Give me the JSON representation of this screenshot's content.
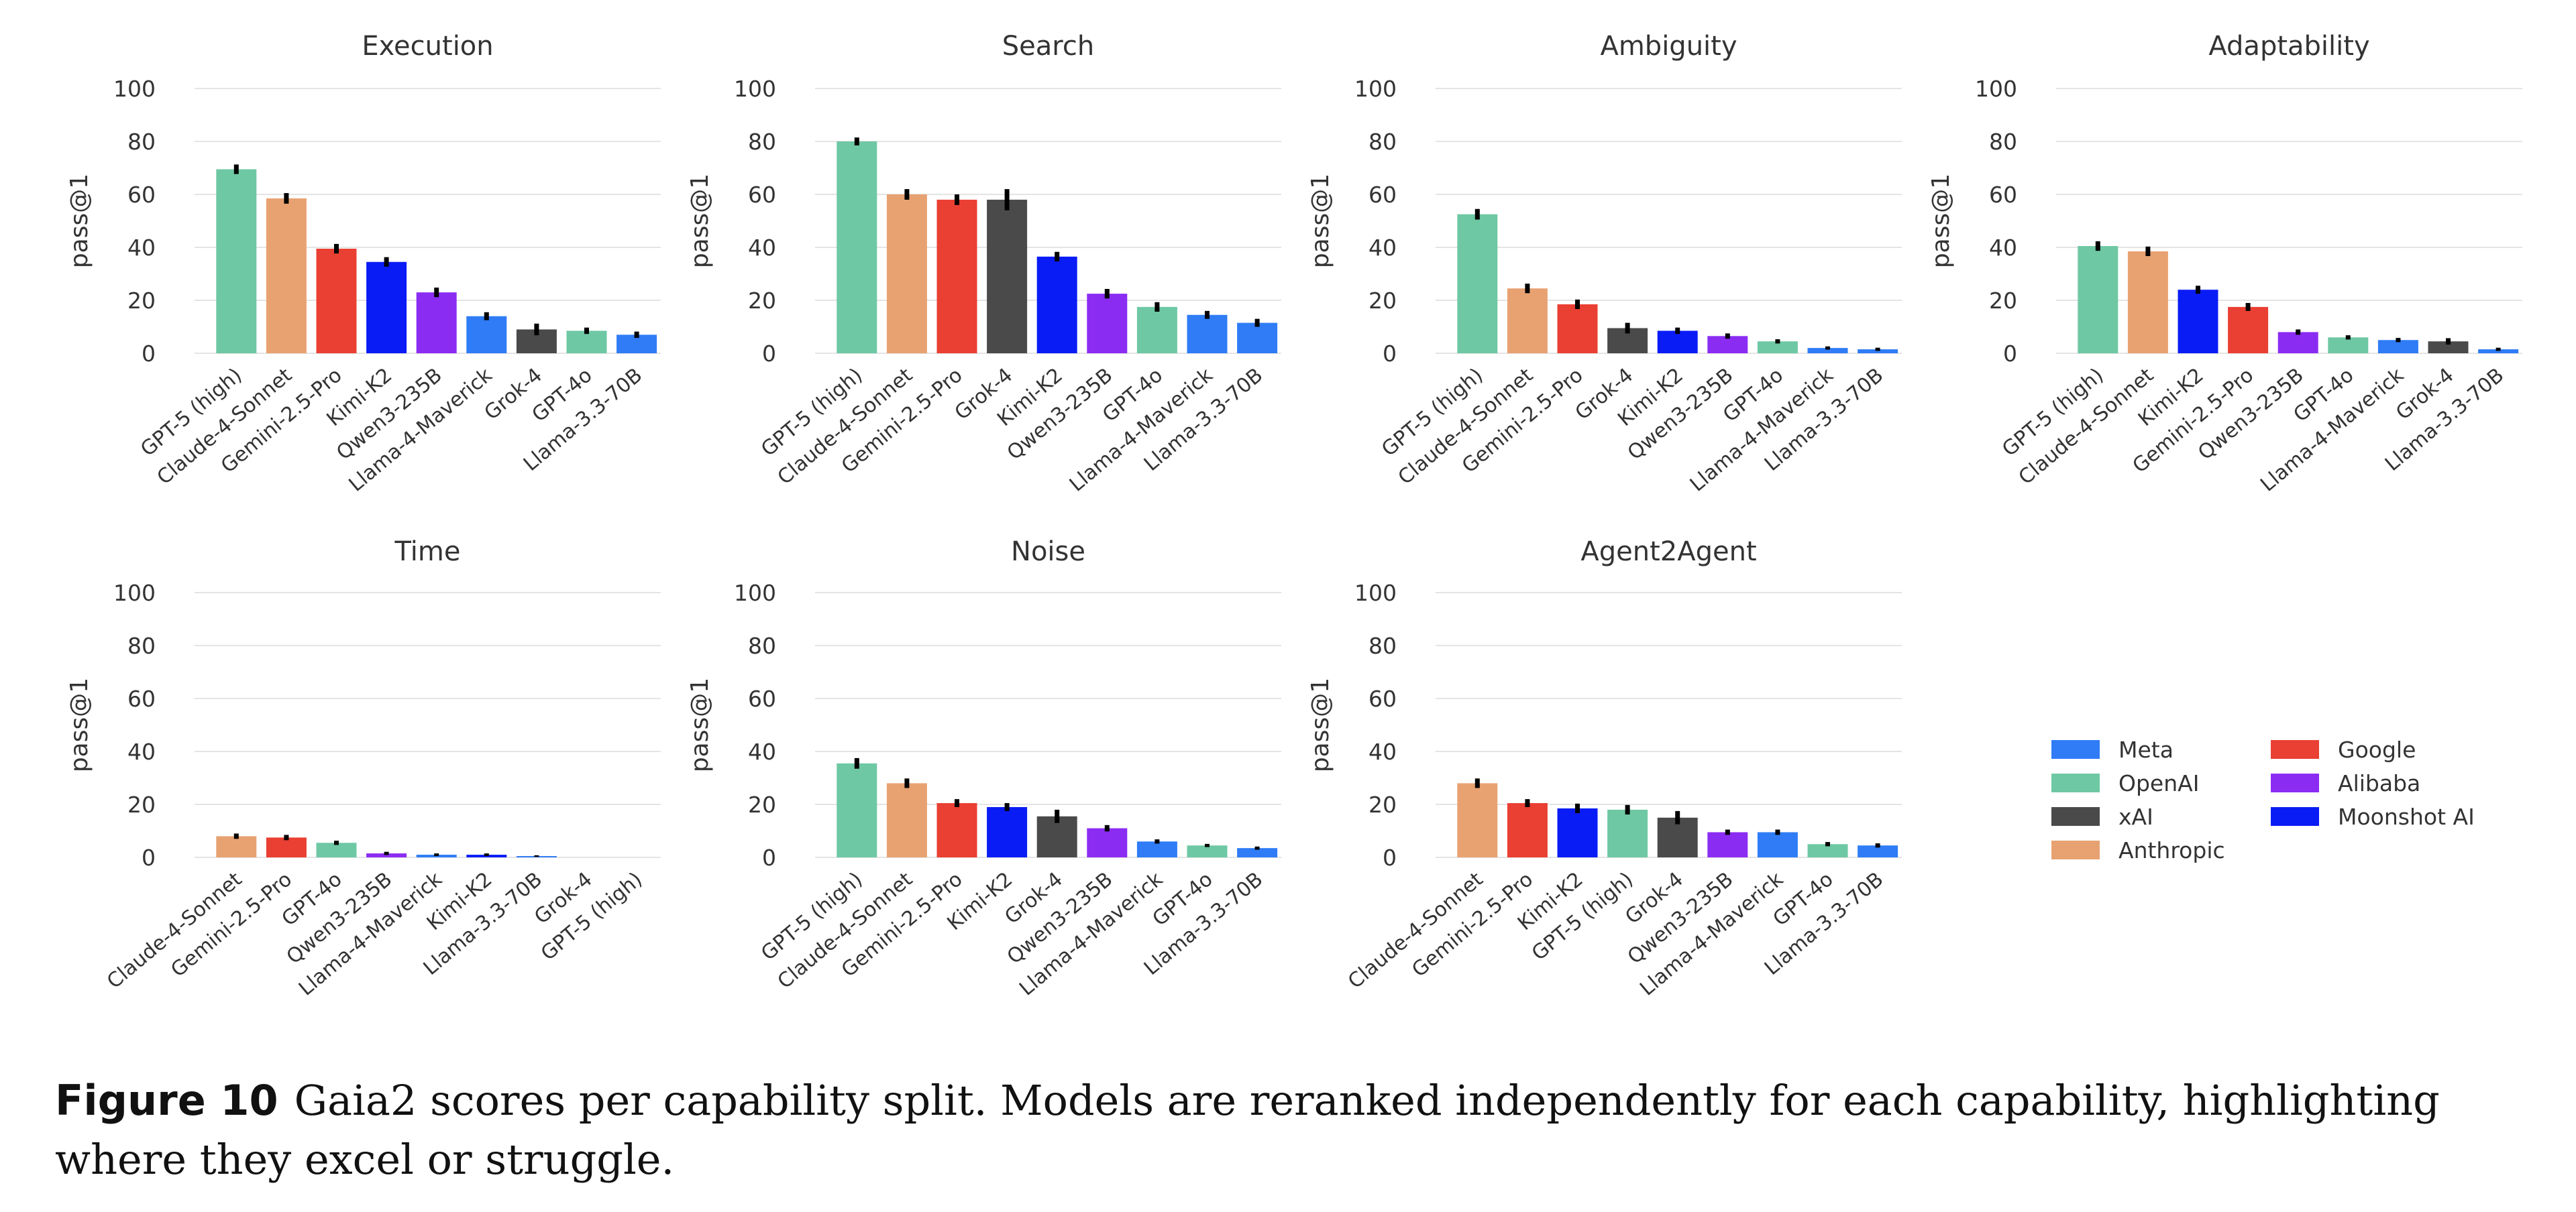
{
  "colors": {
    "Meta": "#2f7cf6",
    "OpenAI": "#6ec8a4",
    "xAI": "#4a4a4a",
    "Anthropic": "#e8a272",
    "Google": "#ea3f33",
    "Alibaba": "#8b2cf3",
    "Moonshot AI": "#0a1cf5"
  },
  "model_provider": {
    "GPT-5 (high)": "OpenAI",
    "GPT-4o": "OpenAI",
    "Claude-4-Sonnet": "Anthropic",
    "Gemini-2.5-Pro": "Google",
    "Kimi-K2": "Moonshot AI",
    "Qwen3-235B": "Alibaba",
    "Llama-4-Maverick": "Meta",
    "Llama-3.3-70B": "Meta",
    "Grok-4": "xAI"
  },
  "legend": {
    "items": [
      "Meta",
      "OpenAI",
      "xAI",
      "Anthropic",
      "Google",
      "Alibaba",
      "Moonshot AI"
    ]
  },
  "chart_data": [
    {
      "type": "bar",
      "title": "Execution",
      "ylabel": "pass@1",
      "ylim": [
        0,
        100
      ],
      "yticks": [
        "0",
        "20",
        "40",
        "60",
        "80",
        "100"
      ],
      "grid": true,
      "categories": [
        "GPT-5 (high)",
        "Claude-4-Sonnet",
        "Gemini-2.5-Pro",
        "Kimi-K2",
        "Qwen3-235B",
        "Llama-4-Maverick",
        "Grok-4",
        "GPT-4o",
        "Llama-3.3-70B"
      ],
      "values": [
        69.5,
        58.5,
        39.5,
        34.5,
        23,
        14,
        9,
        8.5,
        7
      ],
      "errors": [
        1.8,
        2,
        1.8,
        1.8,
        1.8,
        1.5,
        2.2,
        1.2,
        1.2
      ]
    },
    {
      "type": "bar",
      "title": "Search",
      "ylabel": "pass@1",
      "ylim": [
        0,
        100
      ],
      "yticks": [
        "0",
        "20",
        "40",
        "60",
        "80",
        "100"
      ],
      "grid": true,
      "categories": [
        "GPT-5 (high)",
        "Claude-4-Sonnet",
        "Gemini-2.5-Pro",
        "Grok-4",
        "Kimi-K2",
        "Qwen3-235B",
        "GPT-4o",
        "Llama-4-Maverick",
        "Llama-3.3-70B"
      ],
      "values": [
        80,
        60,
        58,
        58,
        36.5,
        22.5,
        17.5,
        14.5,
        11.5
      ],
      "errors": [
        1.5,
        2,
        2,
        4,
        1.8,
        1.8,
        1.8,
        1.5,
        1.5
      ]
    },
    {
      "type": "bar",
      "title": "Ambiguity",
      "ylabel": "pass@1",
      "ylim": [
        0,
        100
      ],
      "yticks": [
        "0",
        "20",
        "40",
        "60",
        "80",
        "100"
      ],
      "grid": true,
      "categories": [
        "GPT-5 (high)",
        "Claude-4-Sonnet",
        "Gemini-2.5-Pro",
        "Grok-4",
        "Kimi-K2",
        "Qwen3-235B",
        "GPT-4o",
        "Llama-4-Maverick",
        "Llama-3.3-70B"
      ],
      "values": [
        52.5,
        24.5,
        18.5,
        9.5,
        8.5,
        6.5,
        4.5,
        2,
        1.5
      ],
      "errors": [
        2,
        1.8,
        1.8,
        2,
        1.2,
        1,
        0.8,
        0.6,
        0.6
      ]
    },
    {
      "type": "bar",
      "title": "Adaptability",
      "ylabel": "pass@1",
      "ylim": [
        0,
        100
      ],
      "yticks": [
        "0",
        "20",
        "40",
        "60",
        "80",
        "100"
      ],
      "grid": true,
      "categories": [
        "GPT-5 (high)",
        "Claude-4-Sonnet",
        "Kimi-K2",
        "Gemini-2.5-Pro",
        "Qwen3-235B",
        "GPT-4o",
        "Llama-4-Maverick",
        "Grok-4",
        "Llama-3.3-70B"
      ],
      "values": [
        40.5,
        38.5,
        24,
        17.5,
        8,
        6,
        5,
        4.5,
        1.5
      ],
      "errors": [
        1.8,
        1.8,
        1.5,
        1.5,
        1,
        0.8,
        0.8,
        1.2,
        0.6
      ]
    },
    {
      "type": "bar",
      "title": "Time",
      "ylabel": "pass@1",
      "ylim": [
        0,
        100
      ],
      "yticks": [
        "0",
        "20",
        "40",
        "60",
        "80",
        "100"
      ],
      "grid": true,
      "categories": [
        "Claude-4-Sonnet",
        "Gemini-2.5-Pro",
        "GPT-4o",
        "Qwen3-235B",
        "Llama-4-Maverick",
        "Kimi-K2",
        "Llama-3.3-70B",
        "Grok-4",
        "GPT-5 (high)"
      ],
      "values": [
        8,
        7.5,
        5.5,
        1.5,
        1,
        1,
        0.5,
        0,
        0
      ],
      "errors": [
        1,
        1,
        0.8,
        0.6,
        0.5,
        0.5,
        0.3,
        0,
        0
      ]
    },
    {
      "type": "bar",
      "title": "Noise",
      "ylabel": "pass@1",
      "ylim": [
        0,
        100
      ],
      "yticks": [
        "0",
        "20",
        "40",
        "60",
        "80",
        "100"
      ],
      "grid": true,
      "categories": [
        "GPT-5 (high)",
        "Claude-4-Sonnet",
        "Gemini-2.5-Pro",
        "Kimi-K2",
        "Grok-4",
        "Qwen3-235B",
        "Llama-4-Maverick",
        "GPT-4o",
        "Llama-3.3-70B"
      ],
      "values": [
        35.5,
        28,
        20.5,
        19,
        15.5,
        11,
        6,
        4.5,
        3.5
      ],
      "errors": [
        2,
        1.8,
        1.5,
        1.5,
        2.5,
        1.2,
        0.8,
        0.6,
        0.6
      ]
    },
    {
      "type": "bar",
      "title": "Agent2Agent",
      "ylabel": "pass@1",
      "ylim": [
        0,
        100
      ],
      "yticks": [
        "0",
        "20",
        "40",
        "60",
        "80",
        "100"
      ],
      "grid": true,
      "categories": [
        "Claude-4-Sonnet",
        "Gemini-2.5-Pro",
        "Kimi-K2",
        "GPT-5 (high)",
        "Grok-4",
        "Qwen3-235B",
        "Llama-4-Maverick",
        "GPT-4o",
        "Llama-3.3-70B"
      ],
      "values": [
        28,
        20.5,
        18.5,
        18,
        15,
        9.5,
        9.5,
        5,
        4.5
      ],
      "errors": [
        1.8,
        1.5,
        1.8,
        1.8,
        2.5,
        1,
        1,
        0.8,
        0.8
      ]
    }
  ],
  "caption": {
    "label": "Figure 10",
    "text": "Gaia2 scores per capability split. Models are reranked independently for each capability, highlighting where they excel or struggle."
  }
}
